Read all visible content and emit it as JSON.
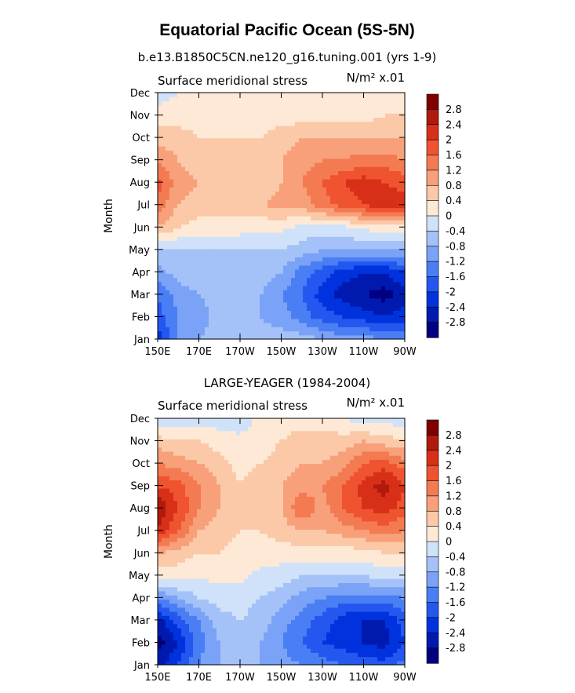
{
  "figure": {
    "title": "Equatorial Pacific Ocean (5S-5N)"
  },
  "colors": {
    "palette": [
      "#000080",
      "#001ab0",
      "#0033dd",
      "#2457f0",
      "#4a7ef4",
      "#7aa2f7",
      "#a5c2f8",
      "#d0e2f9",
      "#fde9d6",
      "#fbc9a8",
      "#f8a07a",
      "#f47a52",
      "#ef5330",
      "#d83018",
      "#b01a0c",
      "#800000"
    ]
  },
  "chart_data": [
    {
      "type": "heatmap",
      "title": "b.e13.B1850C5CN.ne120_g16.tuning.001 (yrs 1-9)",
      "left_label": "Surface meridional stress",
      "units": "N/m² x.01",
      "ylabel": "Month",
      "x_ticks": [
        "150E",
        "170E",
        "170W",
        "150W",
        "130W",
        "110W",
        "90W"
      ],
      "y_ticks": [
        "Jan",
        "Feb",
        "Mar",
        "Apr",
        "May",
        "Jun",
        "Jul",
        "Aug",
        "Sep",
        "Oct",
        "Nov",
        "Dec"
      ],
      "colorbar_levels": [
        "2.8",
        "2.4",
        "2",
        "1.6",
        "1.2",
        "0.8",
        "0.4",
        "0",
        "-0.4",
        "-0.8",
        "-1.2",
        "-1.6",
        "-2",
        "-2.4",
        "-2.8"
      ],
      "x_lon": [
        150,
        160,
        170,
        180,
        190,
        200,
        210,
        220,
        230,
        240,
        250,
        260,
        270
      ],
      "months": [
        "Jan",
        "Feb",
        "Mar",
        "Apr",
        "May",
        "Jun",
        "Jul",
        "Aug",
        "Sep",
        "Oct",
        "Nov",
        "Dec"
      ],
      "values": [
        [
          -2.2,
          -1.2,
          -0.8,
          -0.6,
          -0.6,
          -0.6,
          -0.6,
          -0.6,
          -0.8,
          -1.0,
          -1.0,
          -1.2,
          -1.2
        ],
        [
          -1.8,
          -1.2,
          -1.0,
          -0.6,
          -0.6,
          -0.8,
          -1.0,
          -1.4,
          -1.8,
          -2.0,
          -2.2,
          -2.4,
          -2.2
        ],
        [
          -1.6,
          -1.0,
          -0.8,
          -0.6,
          -0.6,
          -0.8,
          -1.2,
          -1.6,
          -2.2,
          -2.6,
          -2.8,
          -3.0,
          -2.6
        ],
        [
          -1.0,
          -0.6,
          -0.6,
          -0.6,
          -0.6,
          -0.6,
          -0.8,
          -1.4,
          -1.8,
          -2.2,
          -2.4,
          -2.4,
          -2.0
        ],
        [
          -0.4,
          -0.4,
          -0.4,
          -0.4,
          -0.4,
          -0.4,
          -0.4,
          -0.6,
          -0.8,
          -0.8,
          -0.8,
          -0.8,
          -0.8
        ],
        [
          0.8,
          0.4,
          0.2,
          0.2,
          0.2,
          0.1,
          0.1,
          -0.1,
          -0.2,
          -0.1,
          0.1,
          0.2,
          0.2
        ],
        [
          1.4,
          0.8,
          0.6,
          0.6,
          0.6,
          0.8,
          0.9,
          1.0,
          1.4,
          1.8,
          2.0,
          2.4,
          2.2
        ],
        [
          1.8,
          1.0,
          0.8,
          0.6,
          0.6,
          0.6,
          0.8,
          1.2,
          1.6,
          2.0,
          2.2,
          2.0,
          1.8
        ],
        [
          1.2,
          0.8,
          0.6,
          0.6,
          0.6,
          0.6,
          0.8,
          1.0,
          1.2,
          1.2,
          1.4,
          1.4,
          1.2
        ],
        [
          0.6,
          0.6,
          0.4,
          0.4,
          0.4,
          0.4,
          0.6,
          0.8,
          0.8,
          0.8,
          0.8,
          0.8,
          0.8
        ],
        [
          0.2,
          0.2,
          0.2,
          0.2,
          0.2,
          0.2,
          0.2,
          0.2,
          0.2,
          0.2,
          0.2,
          0.4,
          0.4
        ],
        [
          -0.2,
          0.0,
          0.1,
          0.1,
          0.1,
          0.1,
          0.2,
          0.2,
          0.2,
          0.2,
          0.2,
          0.2,
          0.2
        ]
      ]
    },
    {
      "type": "heatmap",
      "title": "LARGE-YEAGER (1984-2004)",
      "left_label": "Surface meridional stress",
      "units": "N/m² x.01",
      "ylabel": "Month",
      "x_ticks": [
        "150E",
        "170E",
        "170W",
        "150W",
        "130W",
        "110W",
        "90W"
      ],
      "y_ticks": [
        "Jan",
        "Feb",
        "Mar",
        "Apr",
        "May",
        "Jun",
        "Jul",
        "Aug",
        "Sep",
        "Oct",
        "Nov",
        "Dec"
      ],
      "colorbar_levels": [
        "2.8",
        "2.4",
        "2",
        "1.6",
        "1.2",
        "0.8",
        "0.4",
        "0",
        "-0.4",
        "-0.8",
        "-1.2",
        "-1.6",
        "-2",
        "-2.4",
        "-2.8"
      ],
      "x_lon": [
        150,
        160,
        170,
        180,
        190,
        200,
        210,
        220,
        230,
        240,
        250,
        260,
        270
      ],
      "months": [
        "Jan",
        "Feb",
        "Mar",
        "Apr",
        "May",
        "Jun",
        "Jul",
        "Aug",
        "Sep",
        "Oct",
        "Nov",
        "Dec"
      ],
      "values": [
        [
          -2.6,
          -2.0,
          -1.2,
          -0.8,
          -0.6,
          -0.8,
          -1.0,
          -1.2,
          -1.4,
          -1.6,
          -1.8,
          -1.8,
          -1.4
        ],
        [
          -3.0,
          -2.4,
          -1.4,
          -0.8,
          -0.6,
          -0.8,
          -1.2,
          -1.6,
          -2.0,
          -2.2,
          -2.4,
          -2.6,
          -2.0
        ],
        [
          -2.6,
          -1.8,
          -1.2,
          -0.6,
          -0.4,
          -0.6,
          -1.0,
          -1.4,
          -1.8,
          -2.2,
          -2.4,
          -2.4,
          -1.8
        ],
        [
          -1.2,
          -0.8,
          -0.4,
          -0.2,
          -0.2,
          -0.4,
          -0.6,
          -1.0,
          -1.2,
          -1.4,
          -1.4,
          -1.4,
          -1.2
        ],
        [
          0.2,
          0.2,
          0.1,
          0.1,
          0.1,
          -0.1,
          -0.2,
          -0.4,
          -0.4,
          -0.4,
          -0.4,
          -0.2,
          -0.2
        ],
        [
          0.8,
          0.6,
          0.4,
          0.4,
          0.2,
          0.2,
          0.2,
          0.2,
          0.2,
          0.2,
          0.2,
          0.4,
          0.4
        ],
        [
          2.4,
          1.6,
          0.8,
          0.6,
          0.4,
          0.4,
          0.6,
          0.8,
          0.8,
          1.0,
          1.2,
          1.4,
          1.2
        ],
        [
          2.8,
          2.0,
          1.2,
          0.8,
          0.4,
          0.6,
          0.8,
          1.6,
          1.0,
          1.6,
          2.0,
          2.2,
          1.8
        ],
        [
          2.0,
          1.8,
          1.2,
          0.8,
          0.4,
          0.8,
          0.8,
          1.0,
          1.2,
          1.6,
          2.2,
          2.6,
          2.0
        ],
        [
          1.2,
          1.0,
          0.8,
          0.6,
          0.2,
          0.4,
          0.6,
          0.8,
          0.8,
          1.0,
          1.6,
          1.8,
          1.4
        ],
        [
          0.6,
          0.4,
          0.4,
          0.2,
          0.1,
          0.2,
          0.4,
          0.6,
          0.6,
          0.6,
          0.8,
          0.6,
          0.4
        ],
        [
          -0.4,
          -0.2,
          -0.2,
          -0.2,
          -0.2,
          0.1,
          0.2,
          0.2,
          0.2,
          0.0,
          -0.2,
          -0.2,
          -0.2
        ]
      ]
    }
  ]
}
